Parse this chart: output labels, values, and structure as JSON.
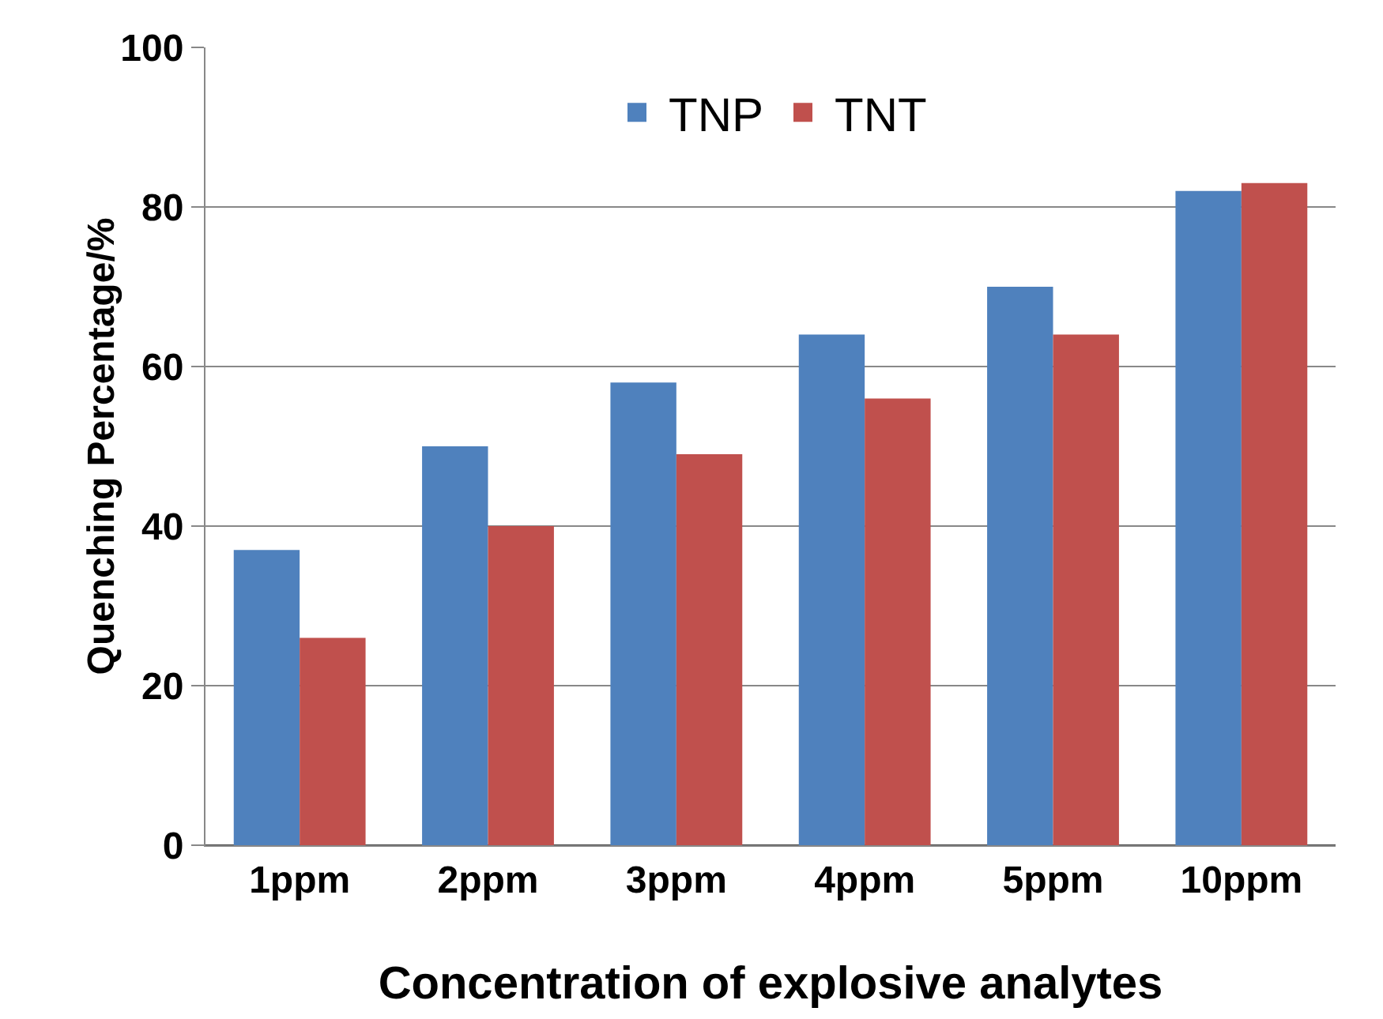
{
  "chart_data": {
    "type": "bar",
    "xlabel": "Concentration of explosive analytes",
    "ylabel": "Quenching Percentage/%",
    "categories": [
      "1ppm",
      "2ppm",
      "3ppm",
      "4ppm",
      "5ppm",
      "10ppm"
    ],
    "series": [
      {
        "name": "TNP",
        "color": "#4f81bd",
        "values": [
          37,
          50,
          58,
          64,
          70,
          82
        ]
      },
      {
        "name": "TNT",
        "color": "#c0504d",
        "values": [
          26,
          40,
          49,
          56,
          64,
          83
        ]
      }
    ],
    "ylim": [
      0,
      100
    ],
    "yticks": [
      0,
      20,
      40,
      60,
      80,
      100
    ],
    "grid": "y",
    "legend": "top"
  }
}
